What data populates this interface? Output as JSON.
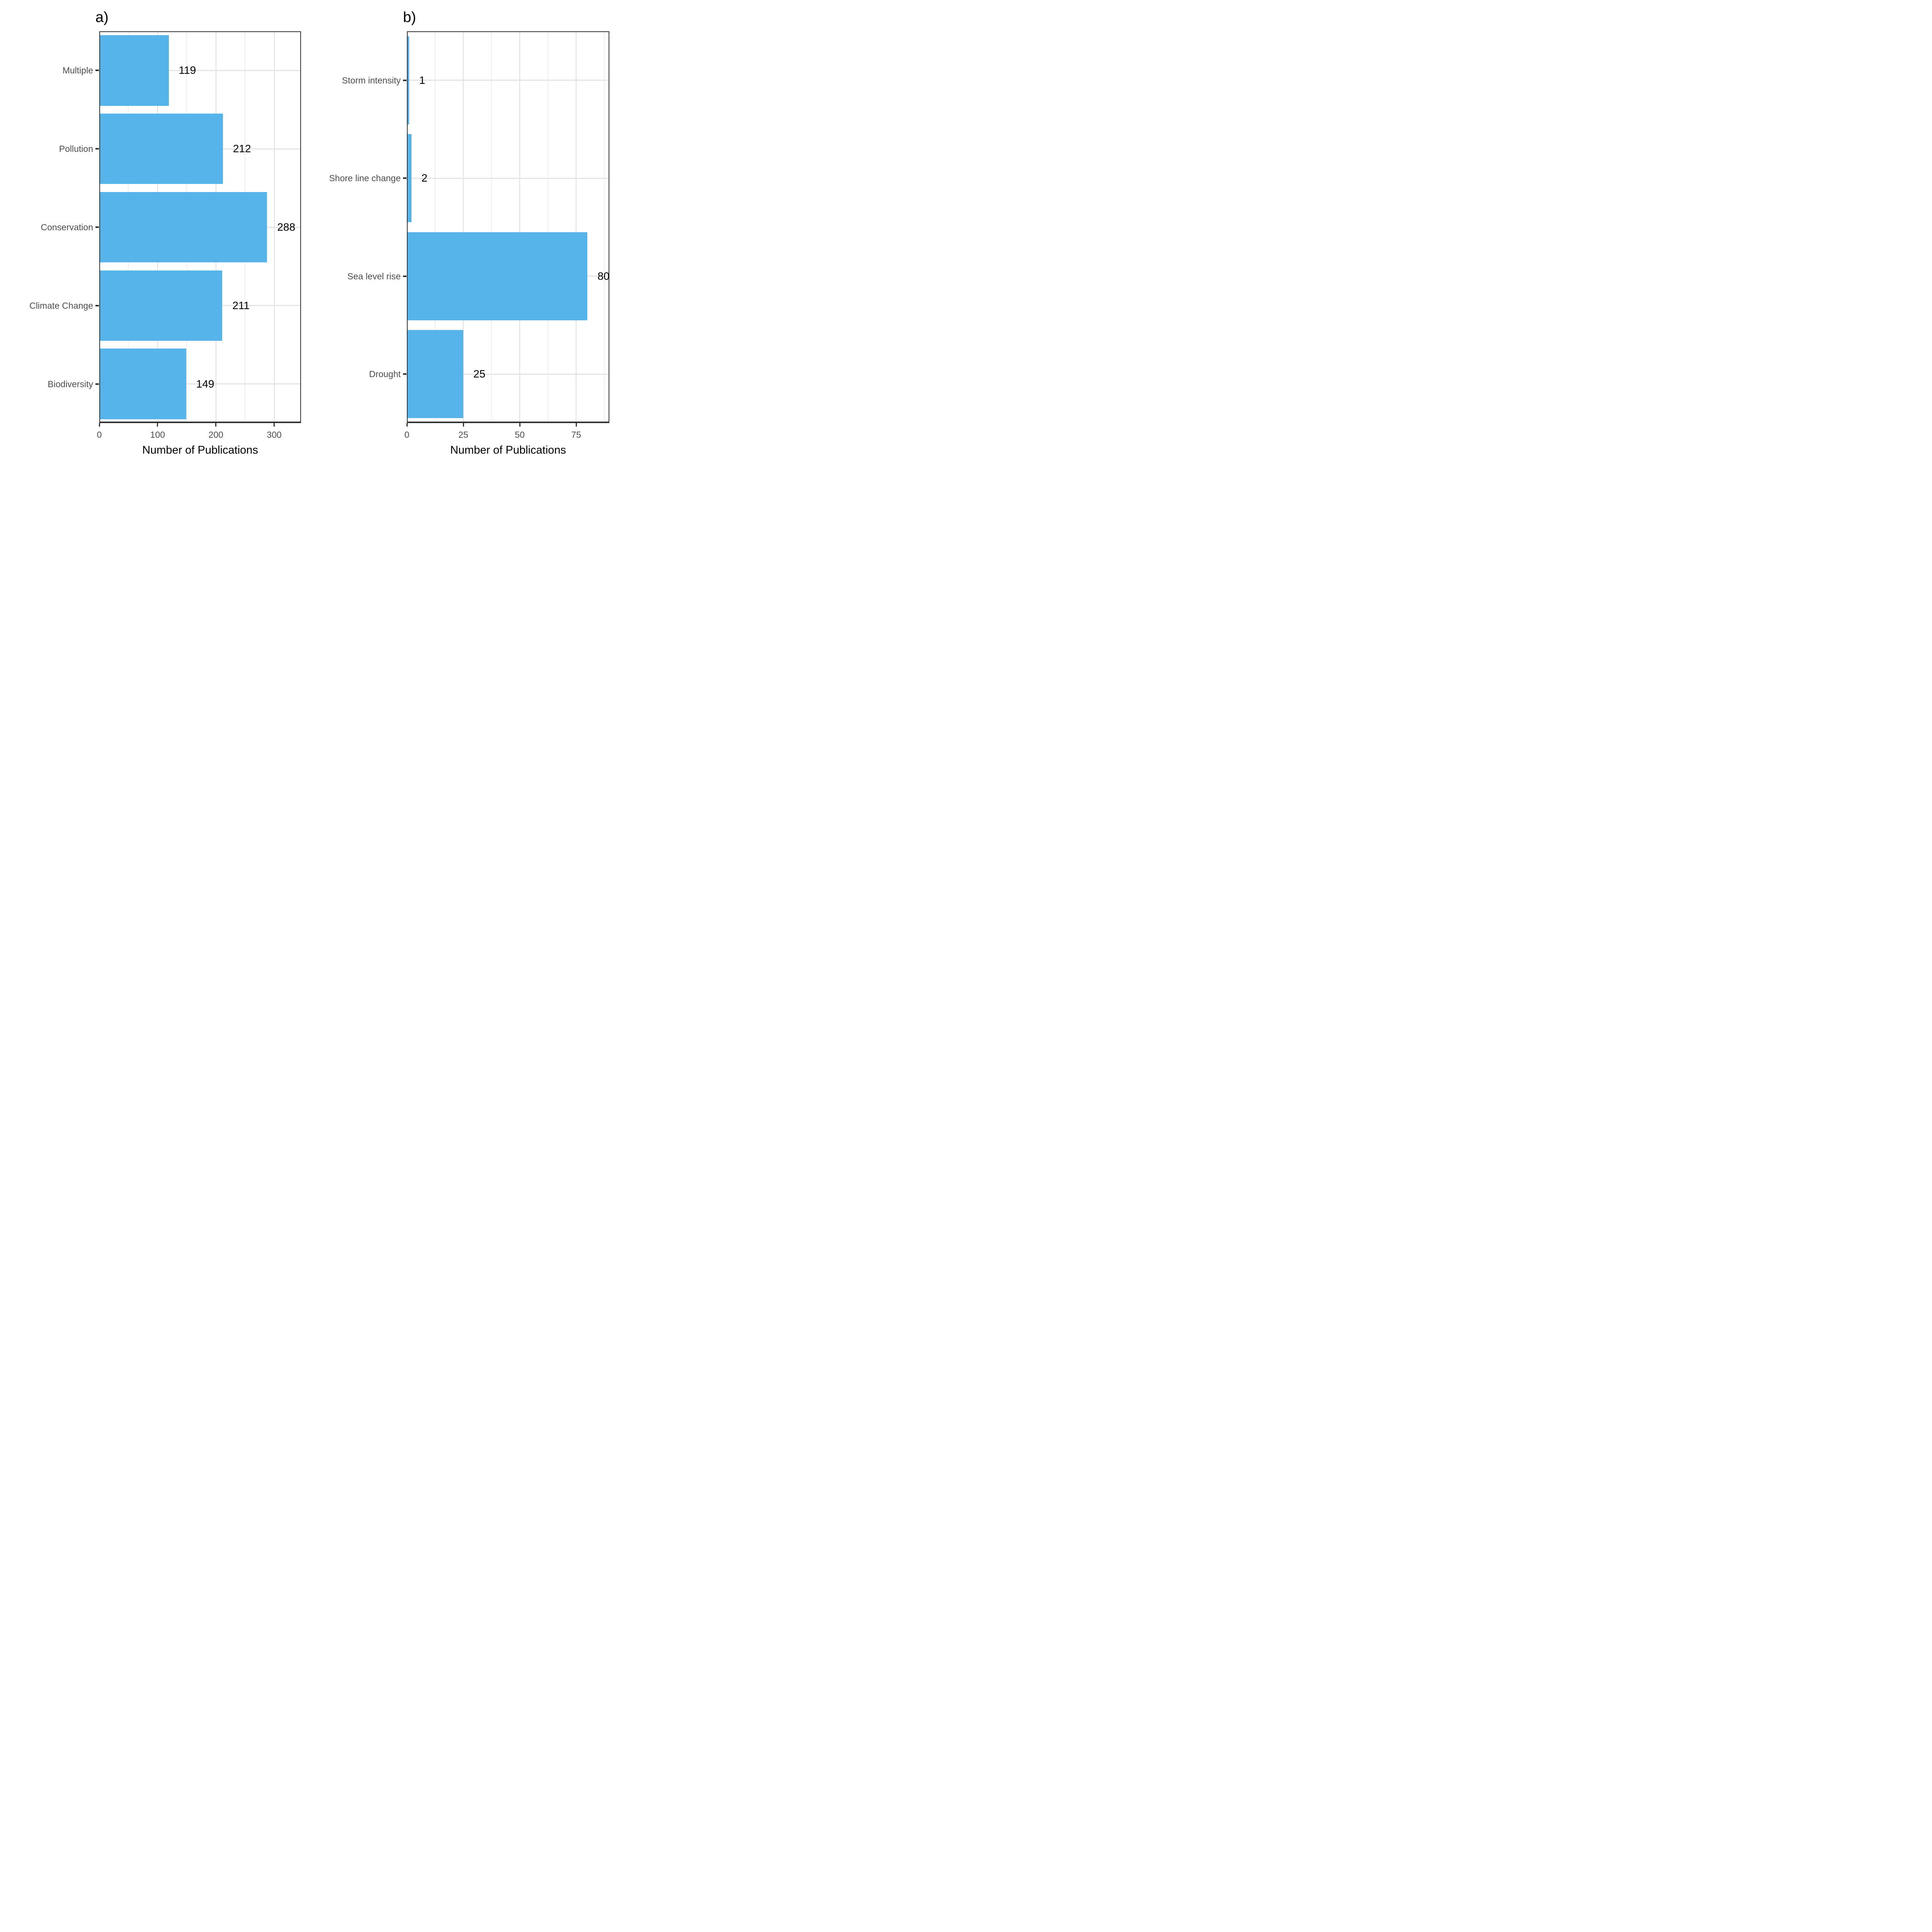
{
  "figure": {
    "background": "#ffffff",
    "description": "Two-panel horizontal bar chart of publication counts"
  },
  "colors": {
    "bar_fill": "#56B4E9",
    "panel_border": "#333333",
    "grid_major": "#DFDFDF",
    "grid_minor": "#EFEFEF",
    "grid_row": "#E4E4E4",
    "axis_text": "#4D4D4D",
    "value_text": "#000000"
  },
  "chart_data": [
    {
      "type": "bar",
      "orientation": "horizontal",
      "panel_label": "a)",
      "categories": [
        "Multiple",
        "Pollution",
        "Conservation",
        "Climate Change",
        "Biodiversity"
      ],
      "values": [
        119,
        212,
        288,
        211,
        149
      ],
      "value_labels": [
        "119",
        "212",
        "288",
        "211",
        "149"
      ],
      "xlabel": "Number of Publications",
      "xticks": [
        0,
        100,
        200,
        300
      ],
      "xtick_labels": [
        "0",
        "100",
        "200",
        "300"
      ],
      "xlim": [
        0,
        346
      ],
      "bar_rel_height": 0.9,
      "grid": {
        "vertical_major": true,
        "vertical_minor": true,
        "horizontal_major": true
      },
      "legend": "none"
    },
    {
      "type": "bar",
      "orientation": "horizontal",
      "panel_label": "b)",
      "categories": [
        "Storm intensity",
        "Shore line change",
        "Sea level rise",
        "Drought"
      ],
      "values": [
        1,
        2,
        80,
        25
      ],
      "value_labels": [
        "1",
        "2",
        "80",
        "25"
      ],
      "xlabel": "Number of Publications",
      "xticks": [
        0,
        25,
        50,
        75
      ],
      "xtick_labels": [
        "0",
        "25",
        "50",
        "75"
      ],
      "xlim": [
        0,
        89.7
      ],
      "bar_rel_height": 0.9,
      "grid": {
        "vertical_major": true,
        "vertical_minor": true,
        "horizontal_major": true
      },
      "legend": "none"
    }
  ]
}
